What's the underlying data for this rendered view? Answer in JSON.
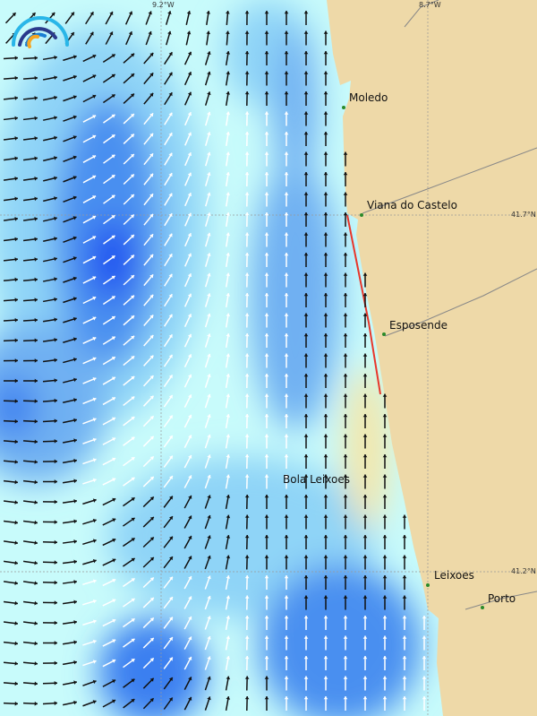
{
  "map": {
    "grid_labels": {
      "lon_left": "9.2°W",
      "lon_right": "8.7°W",
      "lat_top": "41.7°N",
      "lat_bottom": "41.2°N"
    },
    "places": [
      {
        "name": "Moledo"
      },
      {
        "name": "Viana do Castelo"
      },
      {
        "name": "Esposende"
      },
      {
        "name": "Bola Leixoes"
      },
      {
        "name": "Leixoes"
      },
      {
        "name": "Porto"
      }
    ],
    "colors": {
      "land": "#eed9a8",
      "sea_light": "#c8fbfb",
      "sea_mid": "#8fd4f7",
      "sea_deep": "#4a8ff0",
      "sea_max": "#1e4ff0",
      "coast_high": "#e8362a"
    },
    "logo": "logo-arcs"
  }
}
